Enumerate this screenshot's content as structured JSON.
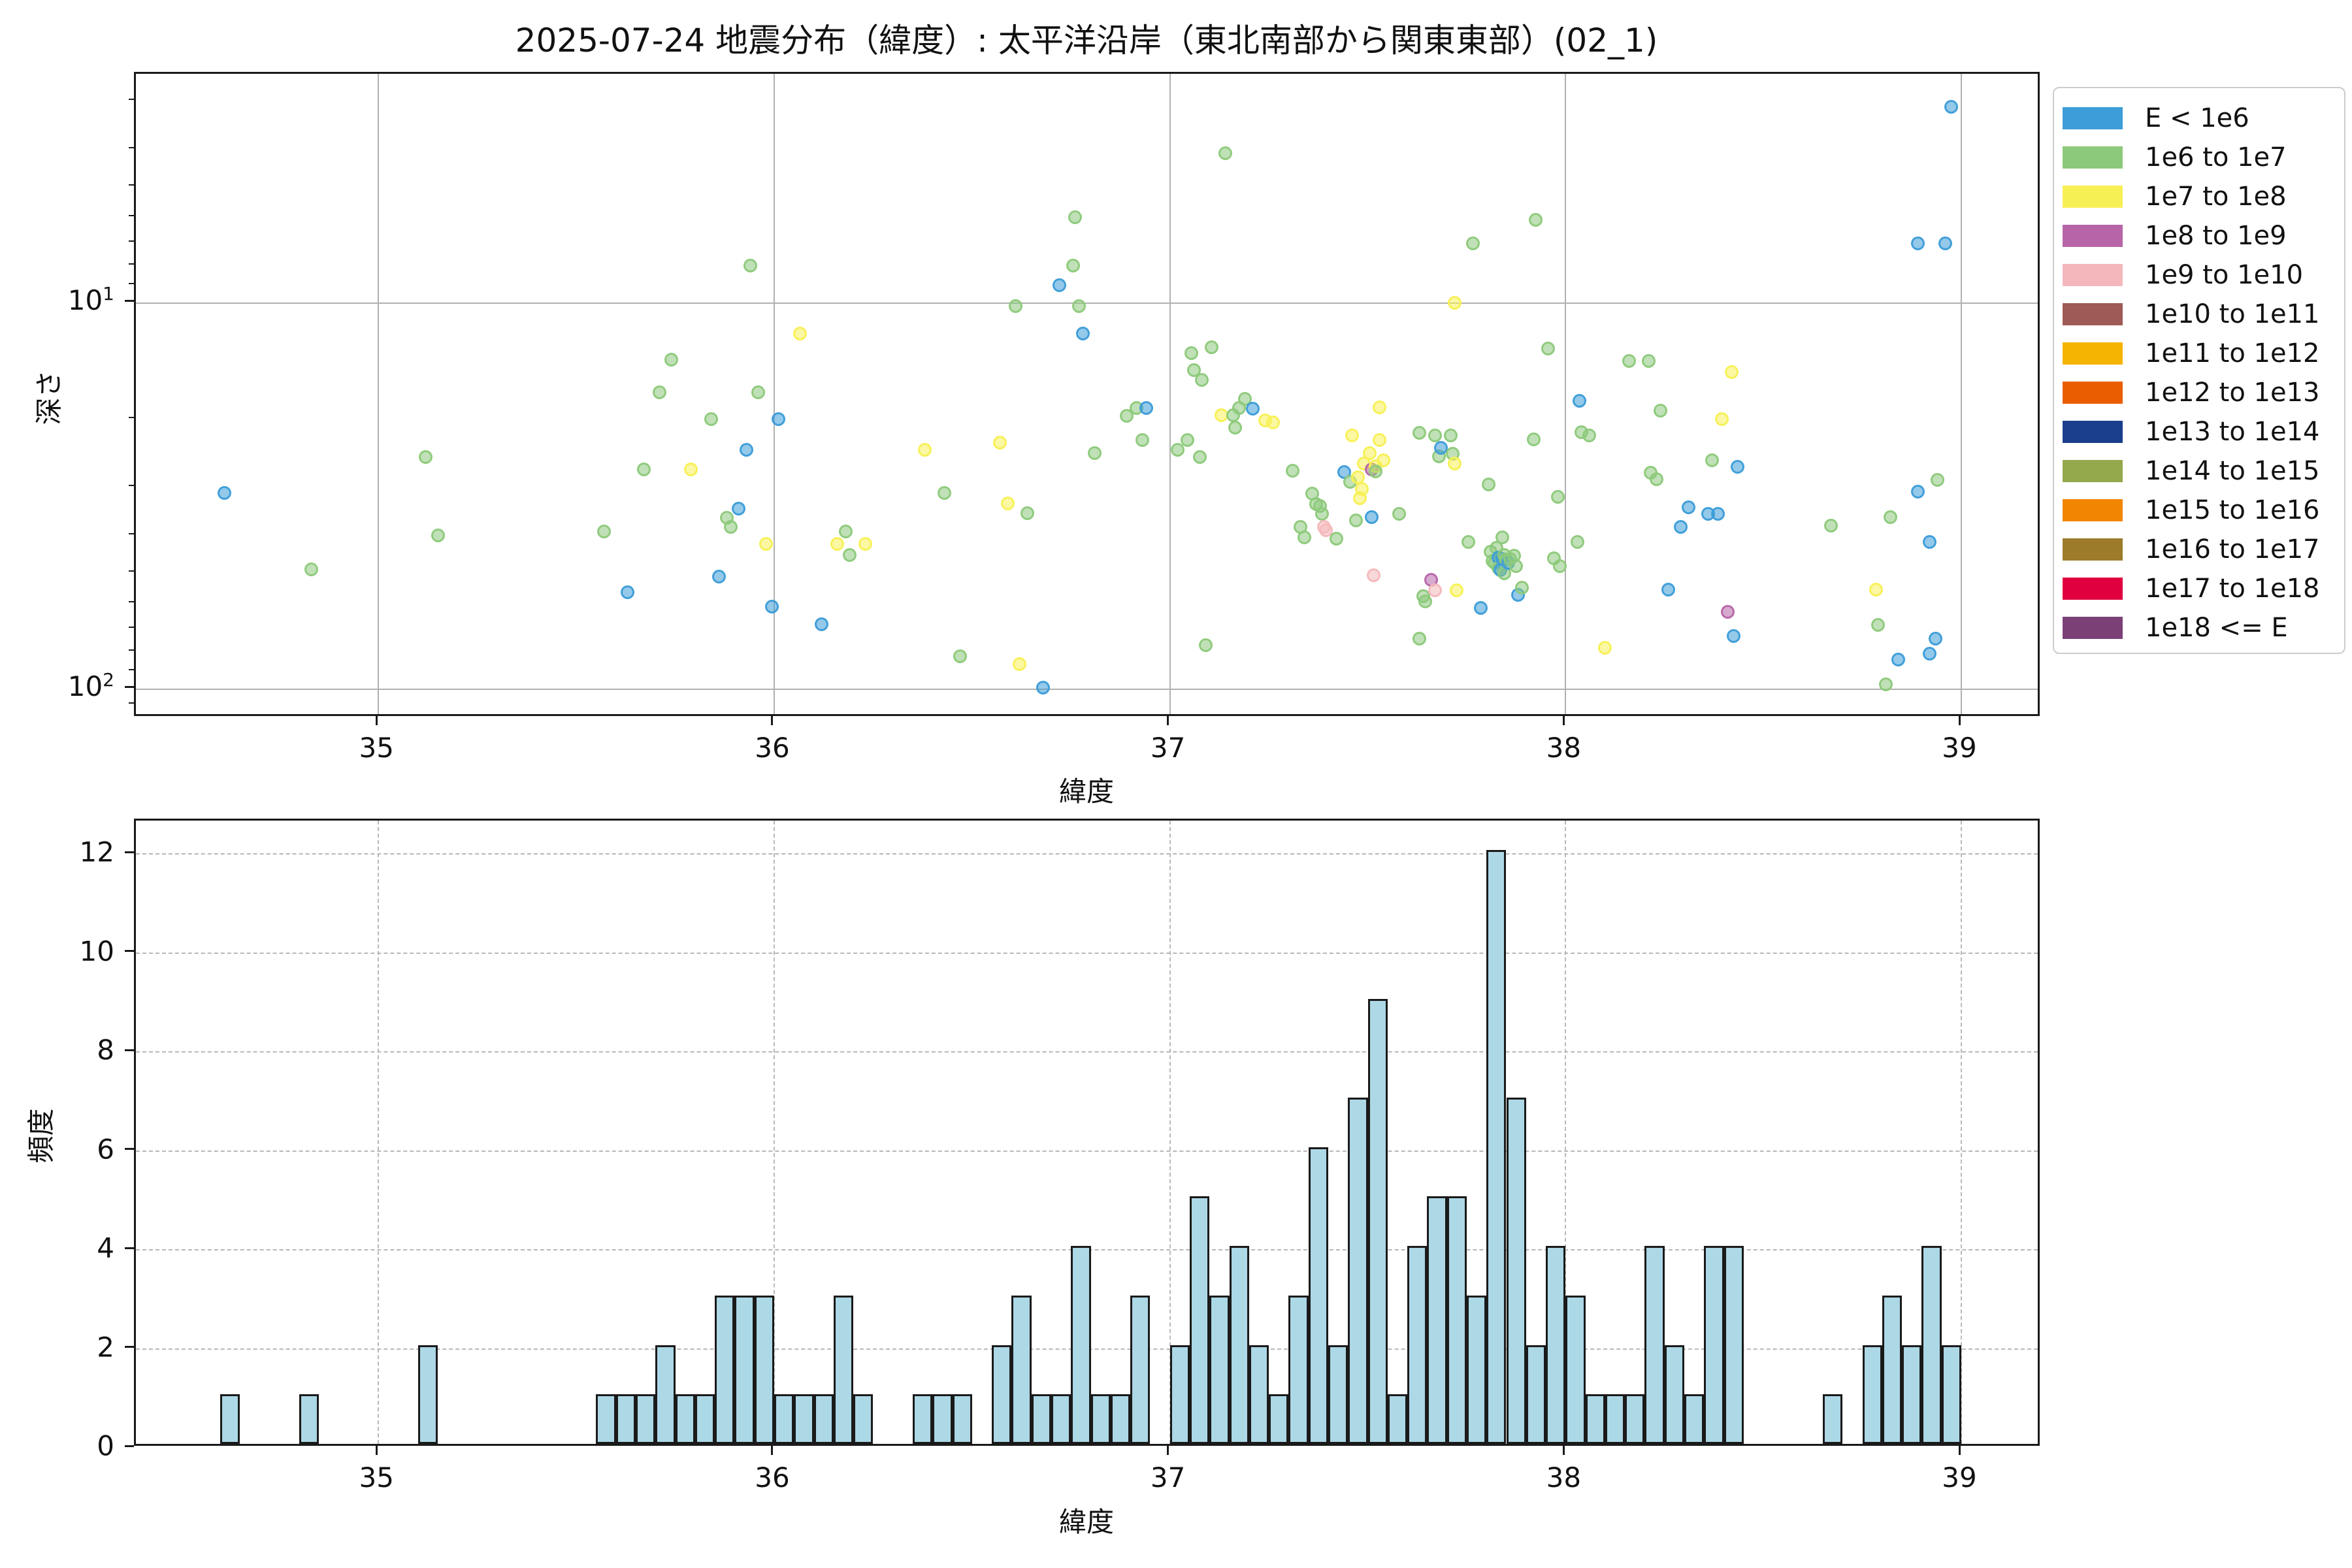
{
  "title": "2025-07-24 地震分布（緯度）: 太平洋沿岸（東北南部から関東東部）(02_1)",
  "point_class_colors": [
    "#3D9DD8",
    "#8DC97B",
    "#F7F055",
    "#B765A8",
    "#F4B8BC"
  ],
  "legend": {
    "entries": [
      {
        "label": "E < 1e6",
        "color": "#3D9DD8"
      },
      {
        "label": "1e6 to 1e7",
        "color": "#8DC97B"
      },
      {
        "label": "1e7 to 1e8",
        "color": "#F7F055"
      },
      {
        "label": "1e8 to 1e9",
        "color": "#B765A8"
      },
      {
        "label": "1e9 to 1e10",
        "color": "#F4B8BC"
      },
      {
        "label": "1e10 to 1e11",
        "color": "#9E5A56"
      },
      {
        "label": "1e11 to 1e12",
        "color": "#F5B302"
      },
      {
        "label": "1e12 to 1e13",
        "color": "#EA5E01"
      },
      {
        "label": "1e13 to 1e14",
        "color": "#1A3E8C"
      },
      {
        "label": "1e14 to 1e15",
        "color": "#94A84C"
      },
      {
        "label": "1e15 to 1e16",
        "color": "#F28603"
      },
      {
        "label": "1e16 to 1e17",
        "color": "#9C7B2A"
      },
      {
        "label": "1e17 to 1e18",
        "color": "#E0003F"
      },
      {
        "label": "1e18 <= E",
        "color": "#7B4177"
      }
    ]
  },
  "chart_data": [
    {
      "type": "scatter",
      "xlabel": "緯度",
      "ylabel": "深さ",
      "xlim": [
        34.387,
        39.203
      ],
      "xticks": [
        35,
        36,
        37,
        38,
        39
      ],
      "yscale": "log-inverted-depth",
      "ylim_depth": [
        2.55,
        118.7
      ],
      "yticks_major": [
        10,
        100
      ],
      "yticklabels": [
        {
          "base": "10",
          "exp": "1"
        },
        {
          "base": "10",
          "exp": "2"
        }
      ],
      "yticks_minor": [
        3,
        4,
        5,
        6,
        7,
        8,
        9,
        20,
        30,
        40,
        50,
        60,
        70,
        80,
        90,
        110
      ],
      "grid": true,
      "points_format": "[latitude, depth_km, energy_class_index]",
      "points": [
        [
          34.61,
          31,
          0
        ],
        [
          34.83,
          49,
          1
        ],
        [
          35.12,
          25,
          1
        ],
        [
          35.15,
          40,
          1
        ],
        [
          35.57,
          39,
          1
        ],
        [
          35.63,
          56,
          0
        ],
        [
          35.67,
          27,
          1
        ],
        [
          35.71,
          17,
          1
        ],
        [
          35.74,
          14,
          1
        ],
        [
          35.79,
          27,
          2
        ],
        [
          35.84,
          20,
          1
        ],
        [
          35.86,
          51,
          0
        ],
        [
          35.88,
          36,
          1
        ],
        [
          35.89,
          38,
          1
        ],
        [
          35.91,
          34,
          0
        ],
        [
          35.93,
          24,
          0
        ],
        [
          35.94,
          8,
          1
        ],
        [
          35.96,
          17,
          1
        ],
        [
          35.98,
          42,
          2
        ],
        [
          35.995,
          61,
          0
        ],
        [
          36.01,
          20,
          0
        ],
        [
          36.065,
          12,
          2
        ],
        [
          36.12,
          68,
          0
        ],
        [
          36.16,
          42,
          2
        ],
        [
          36.18,
          39,
          1
        ],
        [
          36.19,
          45,
          1
        ],
        [
          36.23,
          42,
          2
        ],
        [
          36.38,
          24,
          2
        ],
        [
          36.43,
          31,
          1
        ],
        [
          36.47,
          82,
          1
        ],
        [
          36.57,
          23,
          2
        ],
        [
          36.59,
          33,
          2
        ],
        [
          36.61,
          10.2,
          1
        ],
        [
          36.62,
          86,
          2
        ],
        [
          36.64,
          35,
          1
        ],
        [
          36.68,
          99,
          0
        ],
        [
          36.72,
          9,
          0
        ],
        [
          36.755,
          8,
          1
        ],
        [
          36.76,
          6,
          1
        ],
        [
          36.77,
          10.2,
          1
        ],
        [
          36.78,
          12,
          0
        ],
        [
          36.81,
          24.5,
          1
        ],
        [
          36.89,
          19.6,
          1
        ],
        [
          36.915,
          18.7,
          1
        ],
        [
          36.93,
          22.6,
          1
        ],
        [
          36.94,
          18.7,
          0
        ],
        [
          37.02,
          24,
          1
        ],
        [
          37.045,
          22.6,
          1
        ],
        [
          37.055,
          13.5,
          1
        ],
        [
          37.06,
          14.9,
          1
        ],
        [
          37.075,
          25,
          1
        ],
        [
          37.08,
          15.8,
          1
        ],
        [
          37.09,
          77,
          1
        ],
        [
          37.105,
          13,
          1
        ],
        [
          37.13,
          19.5,
          2
        ],
        [
          37.14,
          4.1,
          1
        ],
        [
          37.16,
          19.5,
          1
        ],
        [
          37.165,
          21,
          1
        ],
        [
          37.175,
          18.7,
          1
        ],
        [
          37.19,
          17.7,
          1
        ],
        [
          37.21,
          18.8,
          0
        ],
        [
          37.24,
          20.1,
          2
        ],
        [
          37.26,
          20.4,
          2
        ],
        [
          37.31,
          27.2,
          1
        ],
        [
          37.33,
          38,
          1
        ],
        [
          37.34,
          40.5,
          1
        ],
        [
          37.36,
          31.2,
          1
        ],
        [
          37.37,
          33.1,
          1
        ],
        [
          37.38,
          33.6,
          1
        ],
        [
          37.385,
          35.1,
          1
        ],
        [
          37.39,
          38,
          4
        ],
        [
          37.395,
          38.7,
          4
        ],
        [
          37.42,
          40.7,
          1
        ],
        [
          37.44,
          27.4,
          0
        ],
        [
          37.455,
          29,
          1
        ],
        [
          37.46,
          22,
          2
        ],
        [
          37.47,
          36.6,
          1
        ],
        [
          37.475,
          28.3,
          2
        ],
        [
          37.48,
          32,
          2
        ],
        [
          37.485,
          30.3,
          2
        ],
        [
          37.49,
          26,
          2
        ],
        [
          37.505,
          24.5,
          2
        ],
        [
          37.51,
          27,
          3
        ],
        [
          37.51,
          35.9,
          0
        ],
        [
          37.515,
          50.7,
          4
        ],
        [
          37.52,
          26.4,
          2
        ],
        [
          37.52,
          27.3,
          1
        ],
        [
          37.53,
          18.6,
          2
        ],
        [
          37.53,
          22.6,
          2
        ],
        [
          37.54,
          25.5,
          2
        ],
        [
          37.58,
          35.1,
          1
        ],
        [
          37.63,
          21.7,
          1
        ],
        [
          37.63,
          74,
          1
        ],
        [
          37.64,
          57.3,
          1
        ],
        [
          37.645,
          59.2,
          1
        ],
        [
          37.66,
          52,
          3
        ],
        [
          37.67,
          55.5,
          4
        ],
        [
          37.67,
          22,
          1
        ],
        [
          37.68,
          24.9,
          1
        ],
        [
          37.685,
          23.7,
          0
        ],
        [
          37.71,
          22,
          1
        ],
        [
          37.715,
          24.6,
          1
        ],
        [
          37.72,
          10,
          2
        ],
        [
          37.72,
          26,
          2
        ],
        [
          37.725,
          55.5,
          2
        ],
        [
          37.755,
          41.6,
          1
        ],
        [
          37.765,
          7,
          1
        ],
        [
          37.785,
          61.6,
          0
        ],
        [
          37.805,
          29.5,
          1
        ],
        [
          37.81,
          44,
          1
        ],
        [
          37.815,
          46.6,
          1
        ],
        [
          37.82,
          47,
          1
        ],
        [
          37.825,
          43,
          1
        ],
        [
          37.83,
          45.6,
          0
        ],
        [
          37.83,
          48.6,
          1
        ],
        [
          37.835,
          49.1,
          0
        ],
        [
          37.84,
          40.4,
          1
        ],
        [
          37.84,
          46,
          0
        ],
        [
          37.845,
          50,
          1
        ],
        [
          37.845,
          45,
          1
        ],
        [
          37.85,
          46.2,
          1
        ],
        [
          37.855,
          47,
          0
        ],
        [
          37.86,
          46,
          1
        ],
        [
          37.87,
          45.1,
          1
        ],
        [
          37.875,
          48,
          1
        ],
        [
          37.88,
          57,
          0
        ],
        [
          37.89,
          54.6,
          1
        ],
        [
          37.92,
          22.5,
          1
        ],
        [
          37.925,
          6.1,
          1
        ],
        [
          37.955,
          13.1,
          1
        ],
        [
          37.97,
          45.8,
          1
        ],
        [
          37.98,
          31.8,
          1
        ],
        [
          37.985,
          48,
          1
        ],
        [
          38.03,
          41.6,
          1
        ],
        [
          38.035,
          17.9,
          0
        ],
        [
          38.04,
          21.6,
          1
        ],
        [
          38.06,
          22,
          1
        ],
        [
          38.1,
          78,
          2
        ],
        [
          38.16,
          14.1,
          1
        ],
        [
          38.21,
          14.1,
          1
        ],
        [
          38.215,
          27.5,
          1
        ],
        [
          38.23,
          28.6,
          1
        ],
        [
          38.24,
          19,
          1
        ],
        [
          38.26,
          55.2,
          0
        ],
        [
          38.29,
          38,
          0
        ],
        [
          38.31,
          33.8,
          0
        ],
        [
          38.36,
          35.2,
          0
        ],
        [
          38.37,
          25.5,
          1
        ],
        [
          38.385,
          35.2,
          0
        ],
        [
          38.395,
          20,
          2
        ],
        [
          38.41,
          63,
          3
        ],
        [
          38.42,
          15.1,
          2
        ],
        [
          38.425,
          72.7,
          0
        ],
        [
          38.435,
          26.5,
          0
        ],
        [
          38.67,
          37.7,
          1
        ],
        [
          38.785,
          55.2,
          2
        ],
        [
          38.79,
          68.1,
          1
        ],
        [
          38.81,
          97,
          1
        ],
        [
          38.82,
          35.9,
          1
        ],
        [
          38.84,
          83.7,
          0
        ],
        [
          38.89,
          7,
          0
        ],
        [
          38.89,
          30.8,
          0
        ],
        [
          38.92,
          41.6,
          0
        ],
        [
          38.92,
          81,
          0
        ],
        [
          38.935,
          73.9,
          0
        ],
        [
          38.94,
          28.7,
          1
        ],
        [
          38.96,
          7,
          0
        ],
        [
          38.975,
          3.1,
          0
        ]
      ]
    },
    {
      "type": "bar",
      "subtype": "histogram",
      "xlabel": "緯度",
      "ylabel": "頻度",
      "xlim": [
        34.387,
        39.203
      ],
      "xticks": [
        35,
        36,
        37,
        38,
        39
      ],
      "ylim": [
        0,
        12.68
      ],
      "yticks": [
        0,
        2,
        4,
        6,
        8,
        10,
        12
      ],
      "grid": "dashed",
      "bar_color": "#ADD8E6",
      "bin_width": 0.05,
      "bars_format": "[bin_start_latitude, frequency]",
      "bars": [
        [
          34.6,
          1
        ],
        [
          34.8,
          1
        ],
        [
          35.1,
          2
        ],
        [
          35.55,
          1
        ],
        [
          35.6,
          1
        ],
        [
          35.65,
          1
        ],
        [
          35.7,
          2
        ],
        [
          35.75,
          1
        ],
        [
          35.8,
          1
        ],
        [
          35.85,
          3
        ],
        [
          35.9,
          3
        ],
        [
          35.95,
          3
        ],
        [
          36.0,
          1
        ],
        [
          36.05,
          1
        ],
        [
          36.1,
          1
        ],
        [
          36.15,
          3
        ],
        [
          36.2,
          1
        ],
        [
          36.35,
          1
        ],
        [
          36.4,
          1
        ],
        [
          36.45,
          1
        ],
        [
          36.55,
          2
        ],
        [
          36.6,
          3
        ],
        [
          36.65,
          1
        ],
        [
          36.7,
          1
        ],
        [
          36.75,
          4
        ],
        [
          36.8,
          1
        ],
        [
          36.85,
          1
        ],
        [
          36.9,
          3
        ],
        [
          37.0,
          2
        ],
        [
          37.05,
          5
        ],
        [
          37.1,
          3
        ],
        [
          37.15,
          4
        ],
        [
          37.2,
          2
        ],
        [
          37.25,
          1
        ],
        [
          37.3,
          3
        ],
        [
          37.35,
          6
        ],
        [
          37.4,
          2
        ],
        [
          37.45,
          7
        ],
        [
          37.5,
          9
        ],
        [
          37.55,
          1
        ],
        [
          37.6,
          4
        ],
        [
          37.65,
          5
        ],
        [
          37.7,
          5
        ],
        [
          37.75,
          3
        ],
        [
          37.8,
          12
        ],
        [
          37.85,
          7
        ],
        [
          37.9,
          2
        ],
        [
          37.95,
          4
        ],
        [
          38.0,
          3
        ],
        [
          38.05,
          1
        ],
        [
          38.1,
          1
        ],
        [
          38.15,
          1
        ],
        [
          38.2,
          4
        ],
        [
          38.25,
          2
        ],
        [
          38.3,
          1
        ],
        [
          38.35,
          4
        ],
        [
          38.4,
          4
        ],
        [
          38.65,
          1
        ],
        [
          38.75,
          2
        ],
        [
          38.8,
          3
        ],
        [
          38.85,
          2
        ],
        [
          38.9,
          4
        ],
        [
          38.95,
          2
        ]
      ]
    }
  ]
}
